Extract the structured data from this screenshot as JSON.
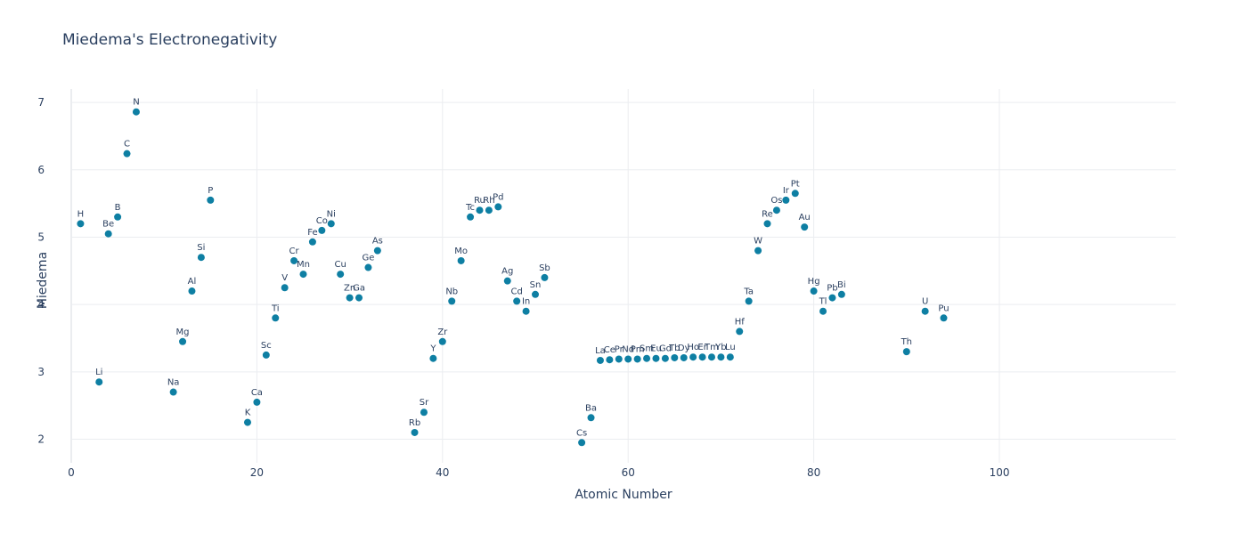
{
  "chart_data": {
    "type": "scatter",
    "title": "Miedema's Electronegativity",
    "xlabel": "Atomic Number",
    "ylabel": "Miedema",
    "xlim": [
      0,
      119
    ],
    "ylim": [
      1.65,
      7.2
    ],
    "xticks": [
      0,
      20,
      40,
      60,
      80,
      100
    ],
    "yticks": [
      2,
      3,
      4,
      5,
      6,
      7
    ],
    "grid": true,
    "marker_color": "#0e7fa3",
    "points": [
      {
        "label": "H",
        "x": 1,
        "y": 5.2
      },
      {
        "label": "Li",
        "x": 3,
        "y": 2.85
      },
      {
        "label": "Be",
        "x": 4,
        "y": 5.05
      },
      {
        "label": "B",
        "x": 5,
        "y": 5.3
      },
      {
        "label": "C",
        "x": 6,
        "y": 6.24
      },
      {
        "label": "N",
        "x": 7,
        "y": 6.86
      },
      {
        "label": "Na",
        "x": 11,
        "y": 2.7
      },
      {
        "label": "Mg",
        "x": 12,
        "y": 3.45
      },
      {
        "label": "Al",
        "x": 13,
        "y": 4.2
      },
      {
        "label": "Si",
        "x": 14,
        "y": 4.7
      },
      {
        "label": "P",
        "x": 15,
        "y": 5.55
      },
      {
        "label": "K",
        "x": 19,
        "y": 2.25
      },
      {
        "label": "Ca",
        "x": 20,
        "y": 2.55
      },
      {
        "label": "Sc",
        "x": 21,
        "y": 3.25
      },
      {
        "label": "Ti",
        "x": 22,
        "y": 3.8
      },
      {
        "label": "V",
        "x": 23,
        "y": 4.25
      },
      {
        "label": "Cr",
        "x": 24,
        "y": 4.65
      },
      {
        "label": "Mn",
        "x": 25,
        "y": 4.45
      },
      {
        "label": "Fe",
        "x": 26,
        "y": 4.93
      },
      {
        "label": "Co",
        "x": 27,
        "y": 5.1
      },
      {
        "label": "Ni",
        "x": 28,
        "y": 5.2
      },
      {
        "label": "Cu",
        "x": 29,
        "y": 4.45
      },
      {
        "label": "Zn",
        "x": 30,
        "y": 4.1
      },
      {
        "label": "Ga",
        "x": 31,
        "y": 4.1
      },
      {
        "label": "Ge",
        "x": 32,
        "y": 4.55
      },
      {
        "label": "As",
        "x": 33,
        "y": 4.8
      },
      {
        "label": "Rb",
        "x": 37,
        "y": 2.1
      },
      {
        "label": "Sr",
        "x": 38,
        "y": 2.4
      },
      {
        "label": "Y",
        "x": 39,
        "y": 3.2
      },
      {
        "label": "Zr",
        "x": 40,
        "y": 3.45
      },
      {
        "label": "Nb",
        "x": 41,
        "y": 4.05
      },
      {
        "label": "Mo",
        "x": 42,
        "y": 4.65
      },
      {
        "label": "Tc",
        "x": 43,
        "y": 5.3
      },
      {
        "label": "Ru",
        "x": 44,
        "y": 5.4
      },
      {
        "label": "Rh",
        "x": 45,
        "y": 5.4
      },
      {
        "label": "Pd",
        "x": 46,
        "y": 5.45
      },
      {
        "label": "Ag",
        "x": 47,
        "y": 4.35
      },
      {
        "label": "Cd",
        "x": 48,
        "y": 4.05
      },
      {
        "label": "In",
        "x": 49,
        "y": 3.9
      },
      {
        "label": "Sn",
        "x": 50,
        "y": 4.15
      },
      {
        "label": "Sb",
        "x": 51,
        "y": 4.4
      },
      {
        "label": "Cs",
        "x": 55,
        "y": 1.95
      },
      {
        "label": "Ba",
        "x": 56,
        "y": 2.32
      },
      {
        "label": "La",
        "x": 57,
        "y": 3.17
      },
      {
        "label": "Ce",
        "x": 58,
        "y": 3.18
      },
      {
        "label": "Pr",
        "x": 59,
        "y": 3.19
      },
      {
        "label": "Nd",
        "x": 60,
        "y": 3.19
      },
      {
        "label": "Pm",
        "x": 61,
        "y": 3.19
      },
      {
        "label": "Sm",
        "x": 62,
        "y": 3.2
      },
      {
        "label": "Eu",
        "x": 63,
        "y": 3.2
      },
      {
        "label": "Gd",
        "x": 64,
        "y": 3.2
      },
      {
        "label": "Tb",
        "x": 65,
        "y": 3.21
      },
      {
        "label": "Dy",
        "x": 66,
        "y": 3.21
      },
      {
        "label": "Ho",
        "x": 67,
        "y": 3.22
      },
      {
        "label": "Er",
        "x": 68,
        "y": 3.22
      },
      {
        "label": "Tm",
        "x": 69,
        "y": 3.22
      },
      {
        "label": "Yb",
        "x": 70,
        "y": 3.22
      },
      {
        "label": "Lu",
        "x": 71,
        "y": 3.22
      },
      {
        "label": "Hf",
        "x": 72,
        "y": 3.6
      },
      {
        "label": "Ta",
        "x": 73,
        "y": 4.05
      },
      {
        "label": "W",
        "x": 74,
        "y": 4.8
      },
      {
        "label": "Re",
        "x": 75,
        "y": 5.2
      },
      {
        "label": "Os",
        "x": 76,
        "y": 5.4
      },
      {
        "label": "Ir",
        "x": 77,
        "y": 5.55
      },
      {
        "label": "Pt",
        "x": 78,
        "y": 5.65
      },
      {
        "label": "Au",
        "x": 79,
        "y": 5.15
      },
      {
        "label": "Hg",
        "x": 80,
        "y": 4.2
      },
      {
        "label": "Tl",
        "x": 81,
        "y": 3.9
      },
      {
        "label": "Pb",
        "x": 82,
        "y": 4.1
      },
      {
        "label": "Bi",
        "x": 83,
        "y": 4.15
      },
      {
        "label": "Th",
        "x": 90,
        "y": 3.3
      },
      {
        "label": "U",
        "x": 92,
        "y": 3.9
      },
      {
        "label": "Pu",
        "x": 94,
        "y": 3.8
      }
    ]
  }
}
